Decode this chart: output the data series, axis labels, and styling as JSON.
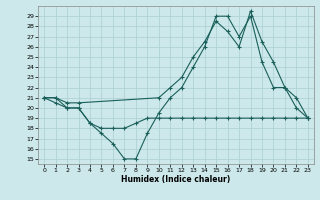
{
  "xlabel": "Humidex (Indice chaleur)",
  "bg_color": "#cce8ea",
  "grid_color": "#aacfd2",
  "line_color": "#1a5f5a",
  "xlim": [
    -0.5,
    23.5
  ],
  "ylim": [
    14.5,
    30.0
  ],
  "yticks": [
    15,
    16,
    17,
    18,
    19,
    20,
    21,
    22,
    23,
    24,
    25,
    26,
    27,
    28,
    29
  ],
  "xticks": [
    0,
    1,
    2,
    3,
    4,
    5,
    6,
    7,
    8,
    9,
    10,
    11,
    12,
    13,
    14,
    15,
    16,
    17,
    18,
    19,
    20,
    21,
    22,
    23
  ],
  "line1_x": [
    0,
    1,
    2,
    3,
    4,
    5,
    6,
    7,
    8,
    9,
    10,
    11,
    12,
    13,
    14,
    15,
    16,
    17,
    18,
    19,
    20,
    21,
    22,
    23
  ],
  "line1_y": [
    21,
    21,
    20,
    20,
    18.5,
    17.5,
    16.5,
    15,
    15,
    17.5,
    19.5,
    21,
    22,
    24,
    26,
    29,
    29,
    27,
    29,
    24.5,
    22,
    22,
    20,
    19
  ],
  "line2_x": [
    0,
    1,
    2,
    3,
    10,
    11,
    12,
    13,
    14,
    15,
    16,
    17,
    18,
    19,
    20,
    21,
    22,
    23
  ],
  "line2_y": [
    21,
    21,
    20.5,
    20.5,
    21,
    22,
    23,
    25,
    26.5,
    28.5,
    27.5,
    26,
    29.5,
    26.5,
    24.5,
    22,
    21,
    19
  ],
  "line3_x": [
    0,
    1,
    2,
    3,
    4,
    5,
    6,
    7,
    8,
    9,
    10,
    11,
    12,
    13,
    14,
    15,
    16,
    17,
    18,
    19,
    20,
    21,
    22,
    23
  ],
  "line3_y": [
    21,
    20.5,
    20,
    20,
    18.5,
    18,
    18,
    18,
    18.5,
    19,
    19,
    19,
    19,
    19,
    19,
    19,
    19,
    19,
    19,
    19,
    19,
    19,
    19,
    19
  ]
}
